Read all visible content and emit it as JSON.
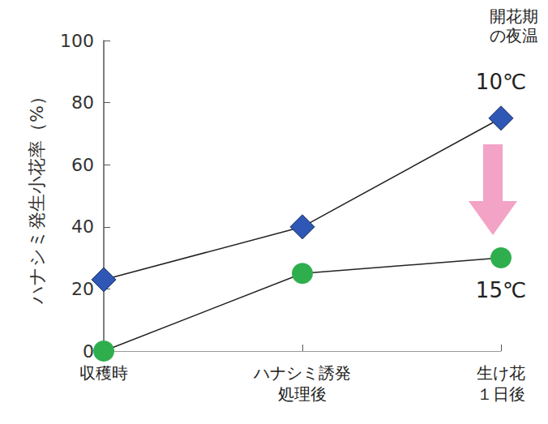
{
  "chart_data": {
    "type": "line",
    "y_label": "ハナシミ発生小花率（%）",
    "annotation": "開花期\nの夜温",
    "categories": [
      "収穫時",
      "ハナシミ誘発\n処理後",
      "生け花\n１日後"
    ],
    "series": [
      {
        "name": "10℃",
        "color": "#2f57b5",
        "marker": "diamond",
        "values": [
          23,
          40,
          75
        ]
      },
      {
        "name": "15℃",
        "color": "#2fae4e",
        "marker": "circle",
        "values": [
          0,
          25,
          30
        ]
      }
    ],
    "ylim": [
      0,
      100
    ],
    "yticks": [
      0,
      20,
      40,
      60,
      80,
      100
    ],
    "grid": false,
    "data_labels": false
  }
}
